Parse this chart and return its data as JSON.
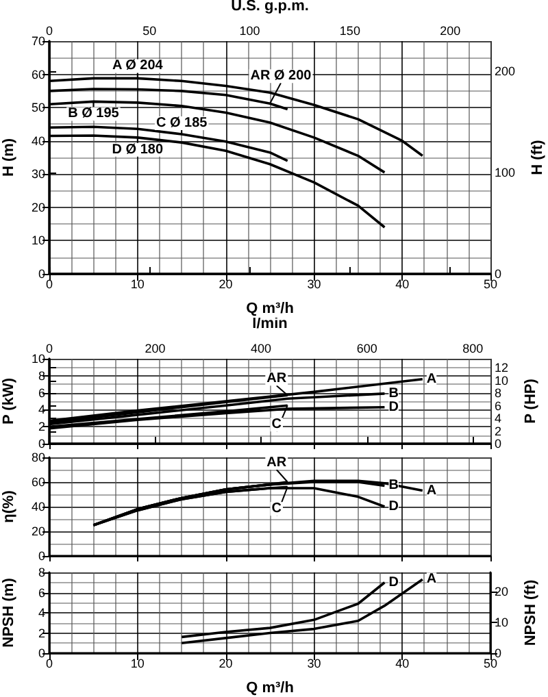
{
  "chart_data": [
    {
      "type": "line",
      "xlabel": "Q m³/h",
      "ylabel": "H (m)",
      "y2label": "H (ft)",
      "x2label": "U.S. g.p.m.",
      "xlim": [
        0,
        50
      ],
      "xticks": [
        0,
        10,
        20,
        30,
        40,
        50
      ],
      "ylim": [
        0,
        70
      ],
      "yticks": [
        0,
        10,
        20,
        30,
        40,
        50,
        60,
        70
      ],
      "x2lim": [
        0,
        220.1
      ],
      "x2ticks": [
        0,
        50,
        100,
        150,
        200
      ],
      "y2lim": [
        0,
        229.7
      ],
      "y2ticks": [
        0,
        100,
        200
      ],
      "grid": true,
      "legend": false,
      "marker": "none",
      "line_style": "solid",
      "series": [
        {
          "name": "A Ø 204",
          "color": "#000000",
          "x": [
            0,
            5,
            10,
            15,
            20,
            25,
            30,
            35,
            40,
            42.3
          ],
          "values": [
            58,
            58.8,
            58.8,
            58,
            56.5,
            54.5,
            50.8,
            46.5,
            40,
            35.5
          ]
        },
        {
          "name": "AR Ø 200",
          "color": "#000000",
          "x": [
            0,
            5,
            10,
            15,
            20,
            25,
            27
          ],
          "values": [
            55,
            55.6,
            55.5,
            55,
            53.8,
            51.2,
            49.5
          ]
        },
        {
          "name": "B Ø 195",
          "color": "#000000",
          "x": [
            0,
            5,
            10,
            15,
            20,
            25,
            30,
            35,
            38
          ],
          "values": [
            51,
            51.8,
            51.5,
            50.5,
            48.5,
            45.5,
            41,
            35.5,
            30.5
          ]
        },
        {
          "name": "C Ø 185",
          "color": "#000000",
          "x": [
            0,
            5,
            10,
            15,
            20,
            25,
            27
          ],
          "values": [
            44,
            44.2,
            43.6,
            42,
            39.8,
            36.5,
            34
          ]
        },
        {
          "name": "D Ø 180",
          "color": "#000000",
          "x": [
            0,
            5,
            10,
            15,
            20,
            25,
            30,
            35,
            38
          ],
          "values": [
            41.5,
            41.6,
            41,
            39.5,
            37,
            33,
            27.5,
            20.5,
            14
          ]
        }
      ]
    },
    {
      "type": "line",
      "ylabel": "P (kW)",
      "y2label": "P (HP)",
      "x2label": "l/min",
      "xlim": [
        0,
        50
      ],
      "xticks": [
        0,
        10,
        20,
        30,
        40,
        50
      ],
      "ylim": [
        0,
        10
      ],
      "yticks": [
        0,
        2,
        4,
        6,
        8,
        10
      ],
      "x2lim": [
        0,
        833.3
      ],
      "x2ticks": [
        0,
        200,
        400,
        600,
        800
      ],
      "y2lim": [
        0,
        13.41
      ],
      "y2ticks": [
        0,
        2,
        4,
        6,
        8,
        10,
        12
      ],
      "tick_labels": "y",
      "grid": true,
      "legend": false,
      "marker": "none",
      "line_style": "solid",
      "series": [
        {
          "name": "A",
          "color": "#000000",
          "x": [
            0,
            10,
            20,
            30,
            42.3
          ],
          "values": [
            2.7,
            3.9,
            5,
            6.1,
            7.6
          ]
        },
        {
          "name": "AR",
          "color": "#000000",
          "x": [
            0,
            10,
            20,
            27
          ],
          "values": [
            2.5,
            3.7,
            4.9,
            5.7
          ]
        },
        {
          "name": "B",
          "color": "#000000",
          "x": [
            0,
            10,
            20,
            27,
            38
          ],
          "values": [
            2.3,
            3.4,
            4.5,
            5.3,
            5.9
          ]
        },
        {
          "name": "C",
          "color": "#000000",
          "x": [
            0,
            10,
            20,
            27
          ],
          "values": [
            2,
            2.9,
            3.8,
            4.5
          ]
        },
        {
          "name": "D",
          "color": "#000000",
          "x": [
            0,
            10,
            20,
            27,
            38
          ],
          "values": [
            1.8,
            2.8,
            3.6,
            4.1,
            4.3
          ]
        }
      ]
    },
    {
      "type": "line",
      "ylabel": "η(%)",
      "xlim": [
        0,
        50
      ],
      "xticks": [
        0,
        10,
        20,
        30,
        40,
        50
      ],
      "ylim": [
        0,
        80
      ],
      "yticks": [
        0,
        20,
        40,
        60,
        80
      ],
      "tick_labels": "y",
      "grid": true,
      "legend": false,
      "marker": "none",
      "line_style": "solid",
      "series": [
        {
          "name": "A",
          "color": "#000000",
          "x": [
            5,
            10,
            15,
            20,
            25,
            30,
            35,
            38,
            42.3
          ],
          "values": [
            25,
            38,
            47,
            54,
            58,
            61,
            61,
            59,
            53
          ]
        },
        {
          "name": "AR",
          "color": "#000000",
          "x": [
            5,
            10,
            15,
            20,
            25,
            27
          ],
          "values": [
            25,
            38,
            47,
            54,
            58,
            60
          ]
        },
        {
          "name": "B",
          "color": "#000000",
          "x": [
            5,
            10,
            15,
            20,
            25,
            30,
            35,
            38
          ],
          "values": [
            25,
            38,
            47,
            54,
            58,
            60,
            60,
            57
          ]
        },
        {
          "name": "C",
          "color": "#000000",
          "x": [
            5,
            10,
            15,
            20,
            25,
            27
          ],
          "values": [
            25,
            37,
            46,
            52,
            55,
            56
          ]
        },
        {
          "name": "D",
          "color": "#000000",
          "x": [
            5,
            10,
            15,
            20,
            25,
            30,
            35,
            38
          ],
          "values": [
            25,
            37,
            46,
            52,
            55,
            55,
            48,
            40
          ]
        }
      ]
    },
    {
      "type": "line",
      "xlabel": "Q m³/h",
      "ylabel": "NPSH (m)",
      "y2label": "NPSH (ft)",
      "xlim": [
        0,
        50
      ],
      "xticks": [
        0,
        10,
        20,
        30,
        40,
        50
      ],
      "ylim": [
        0,
        8
      ],
      "yticks": [
        0,
        2,
        4,
        6,
        8
      ],
      "y2lim": [
        0,
        26.25
      ],
      "y2ticks": [
        0,
        10,
        20
      ],
      "grid": true,
      "legend": false,
      "marker": "none",
      "line_style": "solid",
      "series": [
        {
          "name": "A",
          "color": "#000000",
          "x": [
            15,
            20,
            25,
            30,
            35,
            38,
            42.3
          ],
          "values": [
            1,
            1.5,
            2,
            2.4,
            3.2,
            4.7,
            7.3
          ]
        },
        {
          "name": "D",
          "color": "#000000",
          "x": [
            15,
            20,
            25,
            30,
            35,
            38
          ],
          "values": [
            1.6,
            2.1,
            2.5,
            3.3,
            4.9,
            7
          ]
        }
      ]
    }
  ]
}
